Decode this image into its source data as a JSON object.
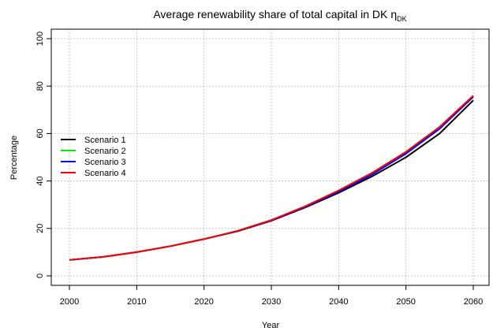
{
  "chart_data": {
    "type": "line",
    "title": "Average renewability share of total capital in DK",
    "title_symbol": "η",
    "title_subscript": "DK",
    "xlabel": "Year",
    "ylabel": "Percentage",
    "xlim": [
      2000,
      2060
    ],
    "ylim": [
      0,
      100
    ],
    "xticks": [
      2000,
      2010,
      2020,
      2030,
      2040,
      2050,
      2060
    ],
    "yticks": [
      0,
      20,
      40,
      60,
      80,
      100
    ],
    "grid": true,
    "legend_position": "left-middle",
    "x": [
      2000,
      2005,
      2010,
      2015,
      2020,
      2025,
      2030,
      2035,
      2040,
      2045,
      2050,
      2055,
      2060
    ],
    "series": [
      {
        "name": "Scenario 1",
        "color": "#000000",
        "values": [
          6.7,
          8.0,
          10.0,
          12.5,
          15.5,
          18.8,
          23.2,
          28.8,
          35.0,
          42.0,
          50.0,
          60.0,
          74.0
        ]
      },
      {
        "name": "Scenario 2",
        "color": "#00ee00",
        "values": [
          6.7,
          8.0,
          10.0,
          12.5,
          15.5,
          18.9,
          23.4,
          29.2,
          35.8,
          43.2,
          52.0,
          62.5,
          75.7
        ]
      },
      {
        "name": "Scenario 3",
        "color": "#0000ff",
        "values": [
          6.7,
          8.0,
          10.0,
          12.5,
          15.5,
          18.9,
          23.3,
          29.0,
          35.5,
          42.8,
          51.5,
          62.0,
          75.5
        ]
      },
      {
        "name": "Scenario 4",
        "color": "#ff0000",
        "values": [
          6.7,
          8.0,
          10.0,
          12.5,
          15.5,
          19.0,
          23.5,
          29.3,
          36.0,
          43.5,
          52.3,
          62.8,
          76.0
        ]
      }
    ]
  }
}
